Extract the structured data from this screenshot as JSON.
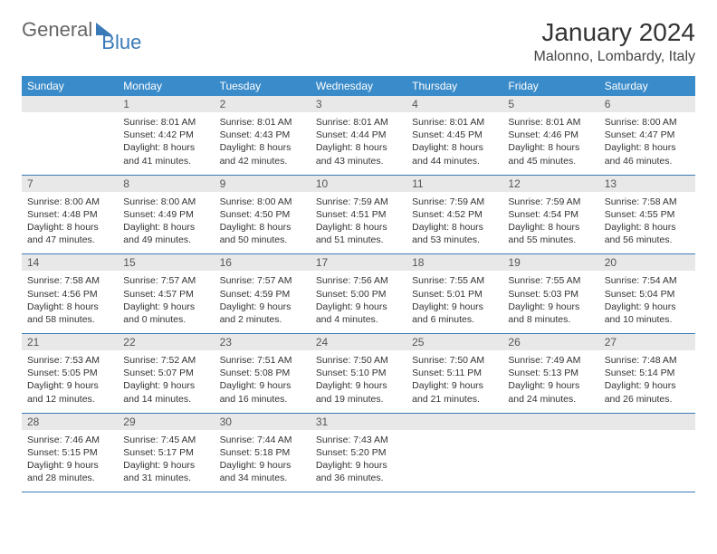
{
  "brand": {
    "word1": "General",
    "word2": "Blue"
  },
  "title": "January 2024",
  "location": "Malonno, Lombardy, Italy",
  "colors": {
    "header_bg": "#3a8bc9",
    "header_text": "#ffffff",
    "daynum_bg": "#e8e8e8",
    "text": "#333333",
    "divider": "#3a7ab8",
    "brand_blue": "#3a7ab8"
  },
  "weekdays": [
    "Sunday",
    "Monday",
    "Tuesday",
    "Wednesday",
    "Thursday",
    "Friday",
    "Saturday"
  ],
  "first_weekday_index": 1,
  "days": [
    {
      "n": 1,
      "sunrise": "8:01 AM",
      "sunset": "4:42 PM",
      "dl_h": 8,
      "dl_m": 41
    },
    {
      "n": 2,
      "sunrise": "8:01 AM",
      "sunset": "4:43 PM",
      "dl_h": 8,
      "dl_m": 42
    },
    {
      "n": 3,
      "sunrise": "8:01 AM",
      "sunset": "4:44 PM",
      "dl_h": 8,
      "dl_m": 43
    },
    {
      "n": 4,
      "sunrise": "8:01 AM",
      "sunset": "4:45 PM",
      "dl_h": 8,
      "dl_m": 44
    },
    {
      "n": 5,
      "sunrise": "8:01 AM",
      "sunset": "4:46 PM",
      "dl_h": 8,
      "dl_m": 45
    },
    {
      "n": 6,
      "sunrise": "8:00 AM",
      "sunset": "4:47 PM",
      "dl_h": 8,
      "dl_m": 46
    },
    {
      "n": 7,
      "sunrise": "8:00 AM",
      "sunset": "4:48 PM",
      "dl_h": 8,
      "dl_m": 47
    },
    {
      "n": 8,
      "sunrise": "8:00 AM",
      "sunset": "4:49 PM",
      "dl_h": 8,
      "dl_m": 49
    },
    {
      "n": 9,
      "sunrise": "8:00 AM",
      "sunset": "4:50 PM",
      "dl_h": 8,
      "dl_m": 50
    },
    {
      "n": 10,
      "sunrise": "7:59 AM",
      "sunset": "4:51 PM",
      "dl_h": 8,
      "dl_m": 51
    },
    {
      "n": 11,
      "sunrise": "7:59 AM",
      "sunset": "4:52 PM",
      "dl_h": 8,
      "dl_m": 53
    },
    {
      "n": 12,
      "sunrise": "7:59 AM",
      "sunset": "4:54 PM",
      "dl_h": 8,
      "dl_m": 55
    },
    {
      "n": 13,
      "sunrise": "7:58 AM",
      "sunset": "4:55 PM",
      "dl_h": 8,
      "dl_m": 56
    },
    {
      "n": 14,
      "sunrise": "7:58 AM",
      "sunset": "4:56 PM",
      "dl_h": 8,
      "dl_m": 58
    },
    {
      "n": 15,
      "sunrise": "7:57 AM",
      "sunset": "4:57 PM",
      "dl_h": 9,
      "dl_m": 0
    },
    {
      "n": 16,
      "sunrise": "7:57 AM",
      "sunset": "4:59 PM",
      "dl_h": 9,
      "dl_m": 2
    },
    {
      "n": 17,
      "sunrise": "7:56 AM",
      "sunset": "5:00 PM",
      "dl_h": 9,
      "dl_m": 4
    },
    {
      "n": 18,
      "sunrise": "7:55 AM",
      "sunset": "5:01 PM",
      "dl_h": 9,
      "dl_m": 6
    },
    {
      "n": 19,
      "sunrise": "7:55 AM",
      "sunset": "5:03 PM",
      "dl_h": 9,
      "dl_m": 8
    },
    {
      "n": 20,
      "sunrise": "7:54 AM",
      "sunset": "5:04 PM",
      "dl_h": 9,
      "dl_m": 10
    },
    {
      "n": 21,
      "sunrise": "7:53 AM",
      "sunset": "5:05 PM",
      "dl_h": 9,
      "dl_m": 12
    },
    {
      "n": 22,
      "sunrise": "7:52 AM",
      "sunset": "5:07 PM",
      "dl_h": 9,
      "dl_m": 14
    },
    {
      "n": 23,
      "sunrise": "7:51 AM",
      "sunset": "5:08 PM",
      "dl_h": 9,
      "dl_m": 16
    },
    {
      "n": 24,
      "sunrise": "7:50 AM",
      "sunset": "5:10 PM",
      "dl_h": 9,
      "dl_m": 19
    },
    {
      "n": 25,
      "sunrise": "7:50 AM",
      "sunset": "5:11 PM",
      "dl_h": 9,
      "dl_m": 21
    },
    {
      "n": 26,
      "sunrise": "7:49 AM",
      "sunset": "5:13 PM",
      "dl_h": 9,
      "dl_m": 24
    },
    {
      "n": 27,
      "sunrise": "7:48 AM",
      "sunset": "5:14 PM",
      "dl_h": 9,
      "dl_m": 26
    },
    {
      "n": 28,
      "sunrise": "7:46 AM",
      "sunset": "5:15 PM",
      "dl_h": 9,
      "dl_m": 28
    },
    {
      "n": 29,
      "sunrise": "7:45 AM",
      "sunset": "5:17 PM",
      "dl_h": 9,
      "dl_m": 31
    },
    {
      "n": 30,
      "sunrise": "7:44 AM",
      "sunset": "5:18 PM",
      "dl_h": 9,
      "dl_m": 34
    },
    {
      "n": 31,
      "sunrise": "7:43 AM",
      "sunset": "5:20 PM",
      "dl_h": 9,
      "dl_m": 36
    }
  ]
}
